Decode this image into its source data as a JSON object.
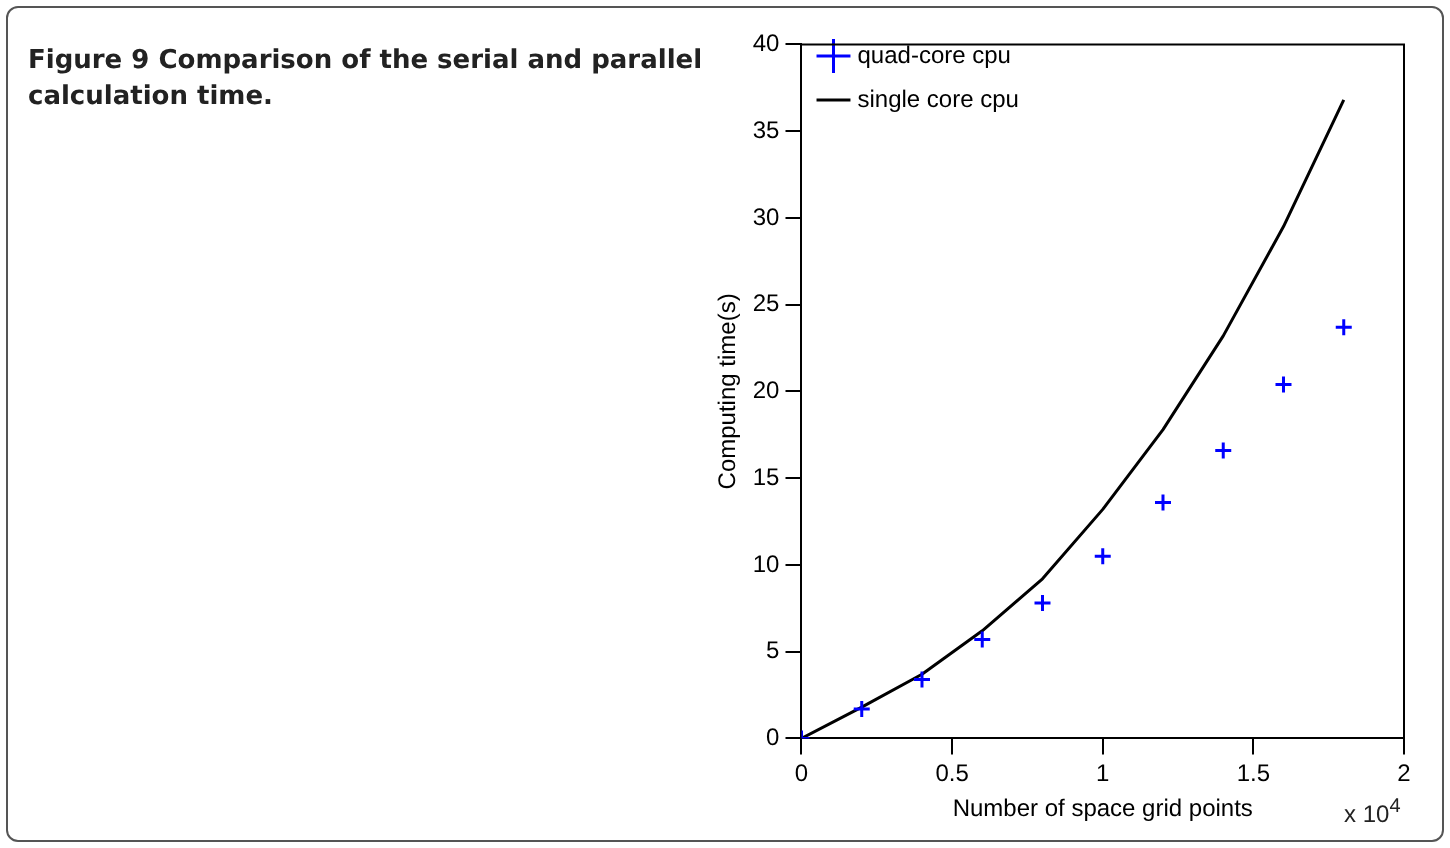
{
  "chart_data": {
    "type": "scatter",
    "title": "Figure 9  Comparison of the serial and parallel calculation time.",
    "xlabel": "Number of space grid points",
    "ylabel": "Computing time(s)",
    "annotations": [
      "x 10$^{4}$"
    ],
    "x": [
      0,
      0.2,
      0.4,
      0.6,
      0.8,
      1,
      1.2,
      1.4,
      1.6,
      1.8
    ],
    "series": [
      {
        "name": "quad-core cpu",
        "color": "#0000ff",
        "marker": "cross",
        "values": [
          0,
          1.7,
          3.4,
          5.7,
          7.8,
          10.5,
          13.6,
          16.6,
          20.4,
          23.7
        ]
      },
      {
        "name": "single core cpu",
        "type": "line",
        "color": "#000000",
        "marker": "none",
        "line_style": "solid",
        "values": [
          0,
          1.8,
          3.7,
          6.2,
          9.2,
          13.2,
          17.8,
          23.2,
          29.5,
          36.8
        ]
      }
    ],
    "xlim": [
      0,
      2
    ],
    "xticks": [
      0,
      0.5,
      1,
      1.5,
      2
    ],
    "ylim": [
      0,
      40
    ],
    "yticks": [
      0,
      5,
      10,
      15,
      20,
      25,
      30,
      35,
      40
    ],
    "grid": false,
    "legend": "top left"
  }
}
